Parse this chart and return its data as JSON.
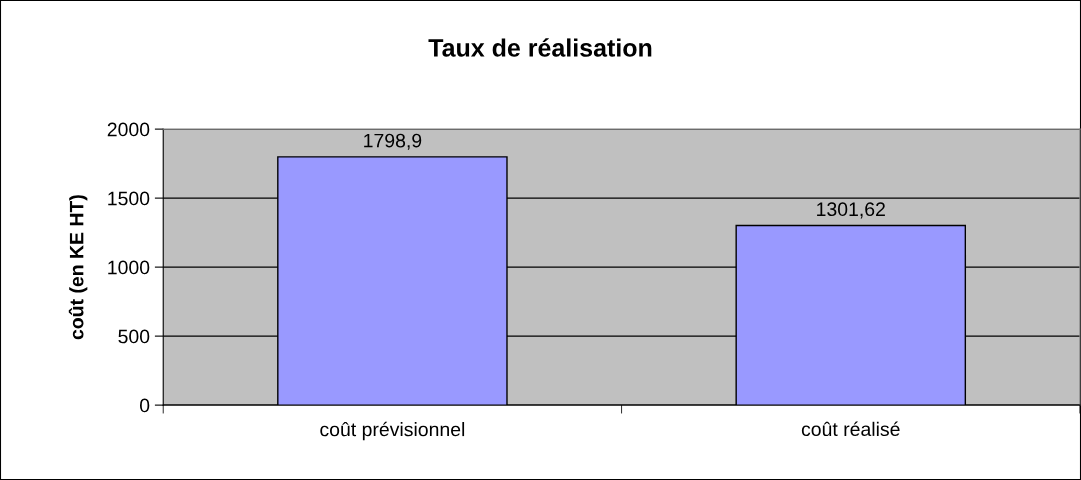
{
  "chart_data": {
    "type": "bar",
    "title": "Taux de réalisation",
    "ylabel": "coût (en KE HT)",
    "categories": [
      "coût prévisionnel",
      "coût réalisé"
    ],
    "values": [
      1798.9,
      1301.62
    ],
    "value_labels": [
      "1798,9",
      "1301,62"
    ],
    "color": "#9999ff",
    "ylim": [
      0,
      2000
    ],
    "yticks": [
      0,
      500,
      1000,
      1500,
      2000
    ],
    "grid": "y",
    "legend": false
  }
}
